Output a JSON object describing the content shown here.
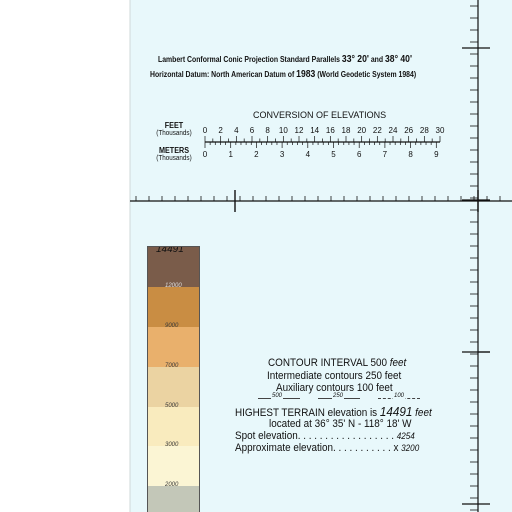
{
  "projection": {
    "line1_prefix": "Lambert Conformal Conic Projection Standard Parallels",
    "parallel1": "33° 20'",
    "and_word": "and",
    "parallel2": "38° 40'",
    "line2_prefix": "Horizontal Datum: North American Datum of",
    "datum_year": "1983",
    "line2_suffix": "(World Geodetic System 1984)"
  },
  "conversion": {
    "title": "CONVERSION OF ELEVATIONS",
    "feet_label": "FEET",
    "feet_sub": "(Thousands)",
    "meters_label": "METERS",
    "meters_sub": "(Thousands)",
    "feet_ticks": [
      "0",
      "2",
      "4",
      "6",
      "8",
      "10",
      "12",
      "14",
      "16",
      "18",
      "20",
      "22",
      "24",
      "26",
      "28",
      "30"
    ],
    "meter_ticks": [
      "0",
      "1",
      "2",
      "3",
      "4",
      "5",
      "6",
      "7",
      "8",
      "9"
    ]
  },
  "elevation_tints": {
    "peak": "14491",
    "bands": [
      {
        "label": "12000",
        "color": "#7a5c4a"
      },
      {
        "label": "9000",
        "color": "#c98d43"
      },
      {
        "label": "7000",
        "color": "#e9b06c"
      },
      {
        "label": "5000",
        "color": "#ebd3a2"
      },
      {
        "label": "3000",
        "color": "#f9ebbe"
      },
      {
        "label": "2000",
        "color": "#fbf5d4"
      },
      {
        "label": "",
        "color": "#c3c7b8"
      }
    ]
  },
  "legend": {
    "contour_interval": "CONTOUR INTERVAL",
    "ci_value": "500",
    "ci_unit": "feet",
    "intermediate": "Intermediate contours 250 feet",
    "auxiliary": "Auxiliary contours 100 feet",
    "sample_500": "500",
    "sample_250": "250",
    "sample_100": "100",
    "highest_prefix": "HIGHEST TERRAIN elevation is",
    "highest_value": "14491",
    "highest_unit": "feet",
    "located": "located at 36° 35' N - 118° 18' W",
    "spot_label": "Spot elevation. . . . . . . . . . . . . . . . . .",
    "spot_value": "4254",
    "approx_label": "Approximate elevation. . . . . . . . . . . x",
    "approx_value": "3200"
  },
  "colors": {
    "panel": "#e8f8fb",
    "ink": "#111111"
  }
}
